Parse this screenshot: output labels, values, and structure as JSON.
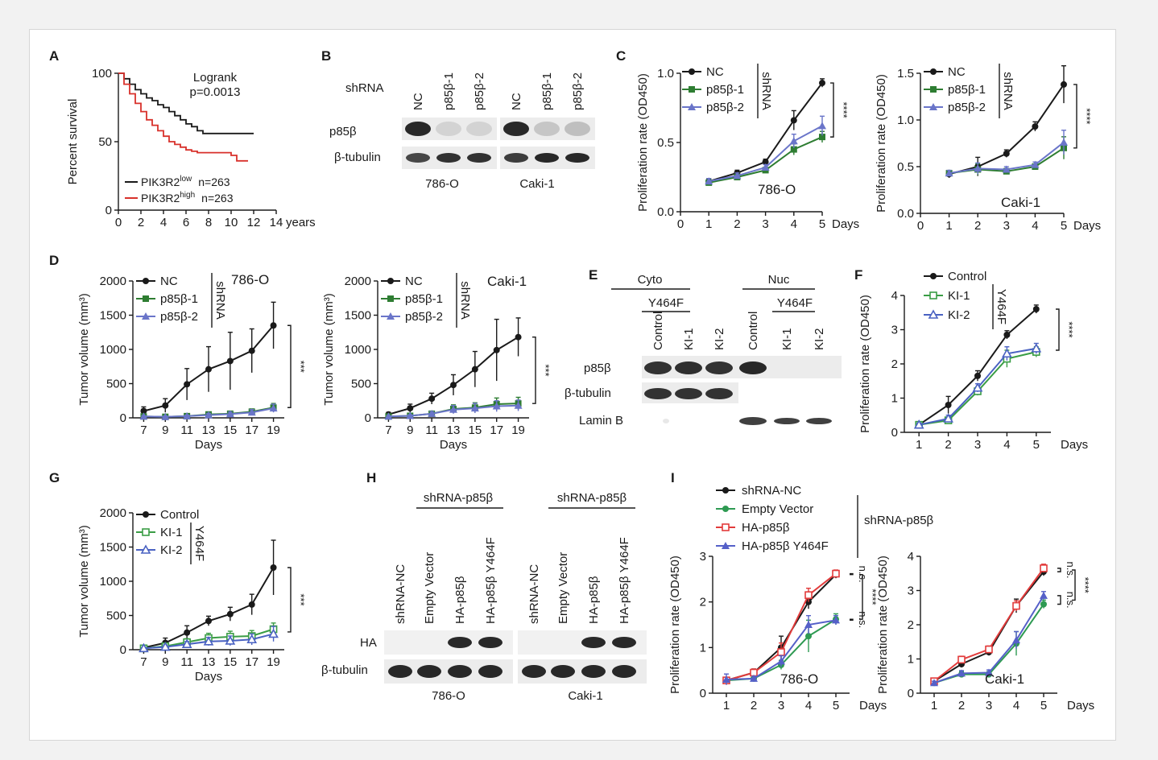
{
  "panels": {
    "A": "A",
    "B": "B",
    "C": "C",
    "D": "D",
    "E": "E",
    "F": "F",
    "G": "G",
    "H": "H",
    "I": "I"
  },
  "shrna": "shRNA",
  "days": "Days",
  "years": "years",
  "ylabel_survival": "Percent survival",
  "ylabel_prolif": "Proliferation rate (OD450)",
  "ylabel_tumor": "Tumor volume (mm³)",
  "stars4": "****",
  "stars3": "***",
  "ns": "n.s.",
  "panelA": {
    "logrank": "Logrank",
    "pval": "p=0.0013",
    "legend": [
      {
        "name": "PIK3R2",
        "sup": "low",
        "n": "n=263",
        "color": "#1a1a1a"
      },
      {
        "name": "PIK3R2",
        "sup": "high",
        "n": "n=263",
        "color": "#d8312b"
      }
    ]
  },
  "panelB": {
    "lane_labels": [
      "NC",
      "p85β-1",
      "p85β-2",
      "NC",
      "p85β-1",
      "p85β-2"
    ],
    "rows": [
      "p85β",
      "β-tubulin"
    ],
    "cells": [
      "786-O",
      "Caki-1"
    ]
  },
  "panelE": {
    "groups": [
      "Cyto",
      "Nuc"
    ],
    "sub": "Y464F",
    "lanes": [
      "Control",
      "KI-1",
      "KI-2",
      "Control",
      "KI-1",
      "KI-2"
    ],
    "rows": [
      "p85β",
      "β-tubulin",
      "Lamin B"
    ]
  },
  "panelH": {
    "groups": [
      "shRNA-p85β",
      "shRNA-p85β"
    ],
    "lanes": [
      "shRNA-NC",
      "Empty Vector",
      "HA-p85β",
      "HA-p85β Y464F",
      "shRNA-NC",
      "Empty Vector",
      "HA-p85β",
      "HA-p85β Y464F"
    ],
    "rows": [
      "HA",
      "β-tubulin"
    ],
    "cells": [
      "786-O",
      "Caki-1"
    ]
  },
  "panelI_legend": {
    "items": [
      "shRNA-NC",
      "Empty Vector",
      "HA-p85β",
      "HA-p85β Y464F"
    ],
    "group": "shRNA-p85β"
  },
  "chart_data": [
    {
      "id": "A",
      "type": "line",
      "x_ticks": [
        0,
        2,
        4,
        6,
        8,
        10,
        12,
        14
      ],
      "y_ticks": [
        0,
        50,
        100
      ],
      "xlim": [
        0,
        14
      ],
      "ylim": [
        0,
        100
      ],
      "xlabel": "years",
      "ylabel": "Percent survival",
      "series": [
        {
          "name": "PIK3R2 low",
          "color": "#1a1a1a",
          "x": [
            0,
            0.5,
            1,
            1.5,
            2,
            2.5,
            3,
            3.5,
            4,
            4.5,
            5,
            5.5,
            6,
            6.5,
            7,
            7.5,
            8,
            12
          ],
          "y": [
            100,
            96,
            92,
            88,
            85,
            82,
            80,
            77,
            75,
            72,
            69,
            66,
            63,
            61,
            58,
            56,
            56,
            56
          ]
        },
        {
          "name": "PIK3R2 high",
          "color": "#d8312b",
          "x": [
            0,
            0.5,
            1,
            1.5,
            2,
            2.5,
            3,
            3.5,
            4,
            4.5,
            5,
            5.5,
            6,
            6.5,
            7,
            8,
            9,
            10,
            10.5,
            11.5
          ],
          "y": [
            100,
            92,
            85,
            78,
            72,
            66,
            62,
            58,
            54,
            50,
            48,
            46,
            44,
            43,
            42,
            42,
            42,
            40,
            36,
            36
          ]
        }
      ]
    },
    {
      "id": "C1",
      "type": "line",
      "cell": "786-O",
      "x": [
        1,
        2,
        3,
        4,
        5
      ],
      "x_ticks": [
        0,
        1,
        2,
        3,
        4,
        5
      ],
      "y_ticks": [
        0.0,
        0.5,
        1.0
      ],
      "xlim": [
        0,
        5
      ],
      "ylim": [
        0,
        1.0
      ],
      "legend": [
        "NC",
        "p85β-1",
        "p85β-2"
      ],
      "series": [
        {
          "name": "NC",
          "color": "#1a1a1a",
          "marker": "circle",
          "values": [
            0.22,
            0.28,
            0.36,
            0.66,
            0.93
          ],
          "err": [
            0.02,
            0.02,
            0.02,
            0.07,
            0.03
          ]
        },
        {
          "name": "p85β-1",
          "color": "#2e7d32",
          "marker": "square",
          "values": [
            0.21,
            0.25,
            0.3,
            0.45,
            0.54
          ],
          "err": [
            0.02,
            0.02,
            0.02,
            0.04,
            0.04
          ]
        },
        {
          "name": "p85β-2",
          "color": "#6a75c9",
          "marker": "triangle",
          "values": [
            0.22,
            0.26,
            0.32,
            0.51,
            0.62
          ],
          "err": [
            0.02,
            0.02,
            0.02,
            0.05,
            0.07
          ]
        }
      ]
    },
    {
      "id": "C2",
      "type": "line",
      "cell": "Caki-1",
      "x": [
        1,
        2,
        3,
        4,
        5
      ],
      "x_ticks": [
        0,
        1,
        2,
        3,
        4,
        5
      ],
      "y_ticks": [
        0.0,
        0.5,
        1.0,
        1.5
      ],
      "xlim": [
        0,
        5
      ],
      "ylim": [
        0,
        1.5
      ],
      "legend": [
        "NC",
        "p85β-1",
        "p85β-2"
      ],
      "series": [
        {
          "name": "NC",
          "color": "#1a1a1a",
          "marker": "circle",
          "values": [
            0.42,
            0.5,
            0.64,
            0.93,
            1.38
          ],
          "err": [
            0.04,
            0.1,
            0.04,
            0.05,
            0.2
          ]
        },
        {
          "name": "p85β-1",
          "color": "#2e7d32",
          "marker": "square",
          "values": [
            0.43,
            0.47,
            0.45,
            0.5,
            0.7
          ],
          "err": [
            0.03,
            0.06,
            0.03,
            0.03,
            0.12
          ]
        },
        {
          "name": "p85β-2",
          "color": "#6a75c9",
          "marker": "triangle",
          "values": [
            0.43,
            0.48,
            0.47,
            0.52,
            0.76
          ],
          "err": [
            0.03,
            0.06,
            0.03,
            0.03,
            0.13
          ]
        }
      ]
    },
    {
      "id": "D1",
      "type": "line",
      "cell": "786-O",
      "x": [
        7,
        9,
        11,
        13,
        15,
        17,
        19
      ],
      "x_ticks": [
        7,
        9,
        11,
        13,
        15,
        17,
        19
      ],
      "y_ticks": [
        0,
        500,
        1000,
        1500,
        2000
      ],
      "xlim": [
        6,
        20
      ],
      "ylim": [
        0,
        2000
      ],
      "legend": [
        "NC",
        "p85β-1",
        "p85β-2"
      ],
      "series": [
        {
          "name": "NC",
          "color": "#1a1a1a",
          "marker": "circle",
          "values": [
            100,
            180,
            490,
            710,
            830,
            980,
            1350
          ],
          "err": [
            60,
            100,
            230,
            330,
            420,
            320,
            340
          ]
        },
        {
          "name": "p85β-1",
          "color": "#2e7d32",
          "marker": "square",
          "values": [
            20,
            15,
            25,
            50,
            60,
            90,
            150
          ],
          "err": [
            10,
            10,
            15,
            25,
            30,
            40,
            60
          ]
        },
        {
          "name": "p85β-2",
          "color": "#6a75c9",
          "marker": "triangle",
          "values": [
            20,
            15,
            25,
            40,
            55,
            80,
            140
          ],
          "err": [
            10,
            10,
            15,
            25,
            30,
            40,
            60
          ]
        }
      ]
    },
    {
      "id": "D2",
      "type": "line",
      "cell": "Caki-1",
      "x": [
        7,
        9,
        11,
        13,
        15,
        17,
        19
      ],
      "x_ticks": [
        7,
        9,
        11,
        13,
        15,
        17,
        19
      ],
      "y_ticks": [
        0,
        500,
        1000,
        1500,
        2000
      ],
      "xlim": [
        6,
        20
      ],
      "ylim": [
        0,
        2000
      ],
      "legend": [
        "NC",
        "p85β-1",
        "p85β-2"
      ],
      "series": [
        {
          "name": "NC",
          "color": "#1a1a1a",
          "marker": "circle",
          "values": [
            50,
            140,
            280,
            480,
            710,
            990,
            1180
          ],
          "err": [
            30,
            60,
            80,
            150,
            260,
            450,
            280
          ]
        },
        {
          "name": "p85β-1",
          "color": "#2e7d32",
          "marker": "square",
          "values": [
            20,
            30,
            60,
            130,
            150,
            200,
            210
          ],
          "err": [
            10,
            15,
            30,
            60,
            70,
            90,
            90
          ]
        },
        {
          "name": "p85β-2",
          "color": "#6a75c9",
          "marker": "triangle",
          "values": [
            20,
            30,
            60,
            120,
            140,
            170,
            180
          ],
          "err": [
            10,
            15,
            30,
            60,
            70,
            80,
            80
          ]
        }
      ]
    },
    {
      "id": "F",
      "type": "line",
      "x": [
        1,
        2,
        3,
        4,
        5
      ],
      "x_ticks": [
        1,
        2,
        3,
        4,
        5
      ],
      "y_ticks": [
        0,
        1,
        2,
        3,
        4
      ],
      "xlim": [
        0.5,
        5.5
      ],
      "ylim": [
        0,
        4
      ],
      "legend": [
        "Control",
        "KI-1",
        "KI-2"
      ],
      "series": [
        {
          "name": "Control",
          "color": "#1a1a1a",
          "marker": "circle",
          "values": [
            0.22,
            0.8,
            1.65,
            2.85,
            3.6
          ],
          "err": [
            0.05,
            0.25,
            0.15,
            0.12,
            0.12
          ]
        },
        {
          "name": "KI-1",
          "color": "#3a9d45",
          "marker": "open-square",
          "values": [
            0.22,
            0.35,
            1.2,
            2.15,
            2.35
          ],
          "err": [
            0.05,
            0.1,
            0.12,
            0.25,
            0.15
          ]
        },
        {
          "name": "KI-2",
          "color": "#4a62c2",
          "marker": "open-triangle",
          "values": [
            0.22,
            0.4,
            1.3,
            2.3,
            2.45
          ],
          "err": [
            0.05,
            0.1,
            0.12,
            0.2,
            0.15
          ]
        }
      ]
    },
    {
      "id": "G",
      "type": "line",
      "x": [
        7,
        9,
        11,
        13,
        15,
        17,
        19
      ],
      "x_ticks": [
        7,
        9,
        11,
        13,
        15,
        17,
        19
      ],
      "y_ticks": [
        0,
        500,
        1000,
        1500,
        2000
      ],
      "xlim": [
        6,
        20
      ],
      "ylim": [
        0,
        2000
      ],
      "legend": [
        "Control",
        "KI-1",
        "KI-2"
      ],
      "series": [
        {
          "name": "Control",
          "color": "#1a1a1a",
          "marker": "circle",
          "values": [
            30,
            100,
            250,
            420,
            520,
            660,
            1200
          ],
          "err": [
            20,
            70,
            100,
            70,
            100,
            150,
            400
          ]
        },
        {
          "name": "KI-1",
          "color": "#3a9d45",
          "marker": "open-square",
          "values": [
            20,
            50,
            110,
            170,
            190,
            200,
            300
          ],
          "err": [
            10,
            30,
            50,
            70,
            80,
            80,
            90
          ]
        },
        {
          "name": "KI-2",
          "color": "#4a62c2",
          "marker": "open-triangle",
          "values": [
            20,
            40,
            80,
            120,
            130,
            150,
            230
          ],
          "err": [
            10,
            30,
            40,
            60,
            70,
            80,
            110
          ]
        }
      ]
    },
    {
      "id": "I1",
      "type": "line",
      "cell": "786-O",
      "x": [
        1,
        2,
        3,
        4,
        5
      ],
      "x_ticks": [
        1,
        2,
        3,
        4,
        5
      ],
      "y_ticks": [
        0,
        1,
        2,
        3
      ],
      "xlim": [
        0.5,
        5.5
      ],
      "ylim": [
        0,
        3
      ],
      "series": [
        {
          "name": "shRNA-NC",
          "color": "#1a1a1a",
          "marker": "circle",
          "values": [
            0.28,
            0.45,
            1.0,
            2.0,
            2.6
          ],
          "err": [
            0.05,
            0.08,
            0.25,
            0.15,
            0.08
          ]
        },
        {
          "name": "Empty Vector",
          "color": "#2e9a52",
          "marker": "circle",
          "values": [
            0.28,
            0.32,
            0.62,
            1.25,
            1.62
          ],
          "err": [
            0.05,
            0.05,
            0.1,
            0.35,
            0.12
          ]
        },
        {
          "name": "HA-p85β",
          "color": "#e23b3b",
          "marker": "open-square",
          "values": [
            0.28,
            0.45,
            0.9,
            2.15,
            2.62
          ],
          "err": [
            0.05,
            0.08,
            0.2,
            0.15,
            0.08
          ]
        },
        {
          "name": "HA-p85β Y464F",
          "color": "#5560c8",
          "marker": "triangle",
          "values": [
            0.3,
            0.32,
            0.7,
            1.5,
            1.6
          ],
          "err": [
            0.12,
            0.05,
            0.12,
            0.2,
            0.1
          ]
        }
      ]
    },
    {
      "id": "I2",
      "type": "line",
      "cell": "Caki-1",
      "x": [
        1,
        2,
        3,
        4,
        5
      ],
      "x_ticks": [
        1,
        2,
        3,
        4,
        5
      ],
      "y_ticks": [
        0,
        1,
        2,
        3,
        4
      ],
      "xlim": [
        0.5,
        5.5
      ],
      "ylim": [
        0,
        4
      ],
      "series": [
        {
          "name": "shRNA-NC",
          "color": "#1a1a1a",
          "marker": "circle",
          "values": [
            0.35,
            0.85,
            1.2,
            2.55,
            3.55
          ],
          "err": [
            0.05,
            0.1,
            0.1,
            0.2,
            0.12
          ]
        },
        {
          "name": "Empty Vector",
          "color": "#2e9a52",
          "marker": "circle",
          "values": [
            0.3,
            0.55,
            0.55,
            1.45,
            2.6
          ],
          "err": [
            0.05,
            0.08,
            0.08,
            0.35,
            0.12
          ]
        },
        {
          "name": "HA-p85β",
          "color": "#e23b3b",
          "marker": "open-square",
          "values": [
            0.35,
            0.98,
            1.28,
            2.55,
            3.65
          ],
          "err": [
            0.05,
            0.1,
            0.1,
            0.15,
            0.12
          ]
        },
        {
          "name": "HA-p85β Y464F",
          "color": "#5560c8",
          "marker": "triangle",
          "values": [
            0.3,
            0.58,
            0.6,
            1.55,
            2.85
          ],
          "err": [
            0.05,
            0.08,
            0.08,
            0.25,
            0.12
          ]
        }
      ]
    }
  ]
}
